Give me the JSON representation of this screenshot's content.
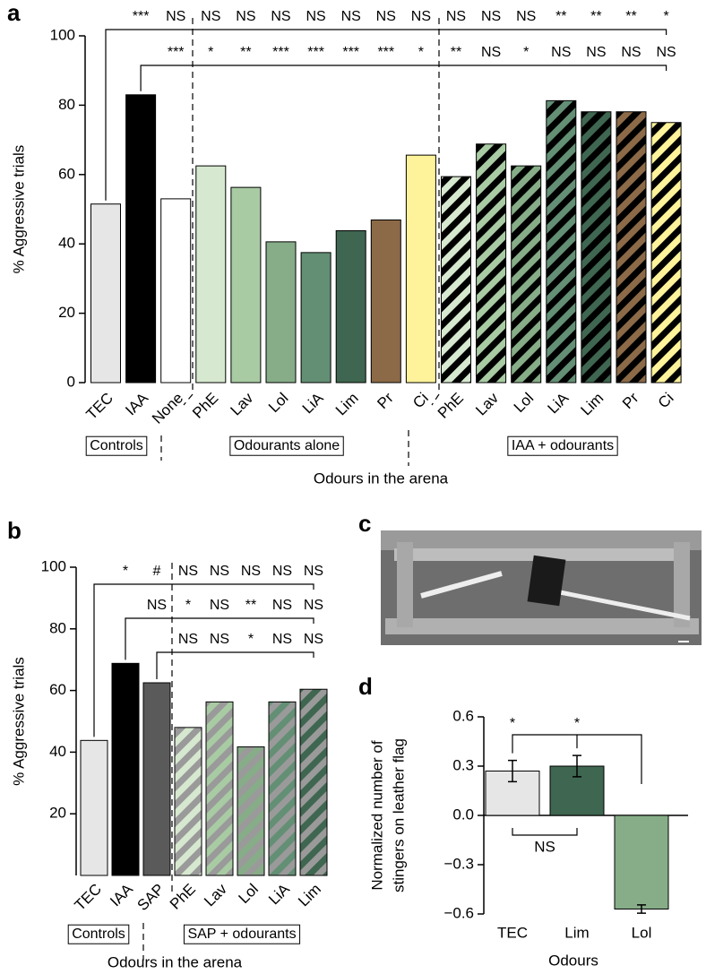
{
  "chart_data": [
    {
      "type": "bar",
      "panel": "a",
      "ylabel": "% Aggressive trials",
      "xlabel": "Odours in the arena",
      "categories": [
        "TEC",
        "IAA",
        "None",
        "PhE",
        "Lav",
        "Lol",
        "LiA",
        "Lim",
        "Pr",
        "Ci",
        "PhE",
        "Lav",
        "Lol",
        "LiA",
        "Lim",
        "Pr",
        "Ci"
      ],
      "values": [
        51.5,
        83,
        53,
        62.5,
        56.3,
        40.6,
        37.5,
        43.8,
        46.9,
        65.6,
        59.4,
        68.8,
        62.5,
        81.3,
        78.1,
        78.1,
        75
      ],
      "colors": [
        "#e6e6e6",
        "#000000",
        "#ffffff",
        "#d6e8cf",
        "#a8cba3",
        "#86ad87",
        "#638f75",
        "#3f6650",
        "#8c6a48",
        "#fef39a",
        "#d6e8cf",
        "#a8cba3",
        "#86ad87",
        "#638f75",
        "#3f6650",
        "#8c6a48",
        "#fef39a"
      ],
      "hatch": [
        null,
        null,
        null,
        null,
        null,
        null,
        null,
        null,
        null,
        null,
        "#000000",
        "#000000",
        "#000000",
        "#000000",
        "#000000",
        "#000000",
        "#000000"
      ],
      "ylim": [
        0,
        100
      ],
      "yticks": [
        0,
        20,
        40,
        60,
        80,
        100
      ],
      "comparisons": [
        [
          null,
          "***",
          "NS",
          "NS",
          "NS",
          "NS",
          "NS",
          "NS",
          "NS",
          "NS",
          "NS",
          "NS",
          "NS",
          "**",
          "**",
          "**",
          "*"
        ],
        [
          null,
          null,
          "***",
          "*",
          "**",
          "***",
          "***",
          "***",
          "***",
          "*",
          "**",
          "NS",
          "*",
          "NS",
          "NS",
          "NS",
          "NS"
        ]
      ],
      "groups": [
        "Controls",
        "Odourants alone",
        "IAA + odourants"
      ]
    },
    {
      "type": "bar",
      "panel": "b",
      "ylabel": "% Aggressive trials",
      "xlabel": "Odours in the arena",
      "categories": [
        "TEC",
        "IAA",
        "SAP",
        "PhE",
        "Lav",
        "Lol",
        "LiA",
        "Lim"
      ],
      "values": [
        43.8,
        68.8,
        62.5,
        48,
        56.3,
        41.7,
        56.3,
        60.4
      ],
      "colors": [
        "#e6e6e6",
        "#000000",
        "#5a5a5a",
        "#d6e8cf",
        "#a8cba3",
        "#86ad87",
        "#638f75",
        "#3f6650"
      ],
      "hatch": [
        null,
        null,
        null,
        "#9a9a9a",
        "#9a9a9a",
        "#9a9a9a",
        "#9a9a9a",
        "#9a9a9a"
      ],
      "ylim": [
        0,
        100
      ],
      "yticks": [
        20,
        40,
        60,
        80,
        100
      ],
      "comparisons": [
        [
          null,
          "*",
          "#",
          "NS",
          "NS",
          "NS",
          "NS",
          "NS"
        ],
        [
          null,
          null,
          "NS",
          "*",
          "NS",
          "**",
          "NS",
          "NS"
        ],
        [
          null,
          null,
          null,
          "NS",
          "NS",
          "*",
          "NS",
          "NS"
        ]
      ],
      "groups": [
        "Controls",
        "SAP + odourants"
      ]
    },
    {
      "type": "bar",
      "panel": "d",
      "ylabel": [
        "Normalized number of",
        "stingers on leather flag"
      ],
      "xlabel": "Odours",
      "categories": [
        "TEC",
        "Lim",
        "Lol"
      ],
      "values": [
        0.27,
        0.3,
        -0.57
      ],
      "errors": [
        0.065,
        0.065,
        0.025
      ],
      "colors": [
        "#e6e6e6",
        "#3f6650",
        "#86ad87"
      ],
      "ylim": [
        -0.6,
        0.6
      ],
      "yticks": [
        0.6,
        0.3,
        {
          "value": 0,
          "label": "0.0"
        },
        {
          "value": -0.3,
          "label": "−0.3"
        },
        {
          "value": -0.6,
          "label": "−0.6"
        }
      ],
      "annotations": [
        "*",
        "*",
        "NS"
      ]
    }
  ],
  "image": {
    "panel": "c"
  }
}
